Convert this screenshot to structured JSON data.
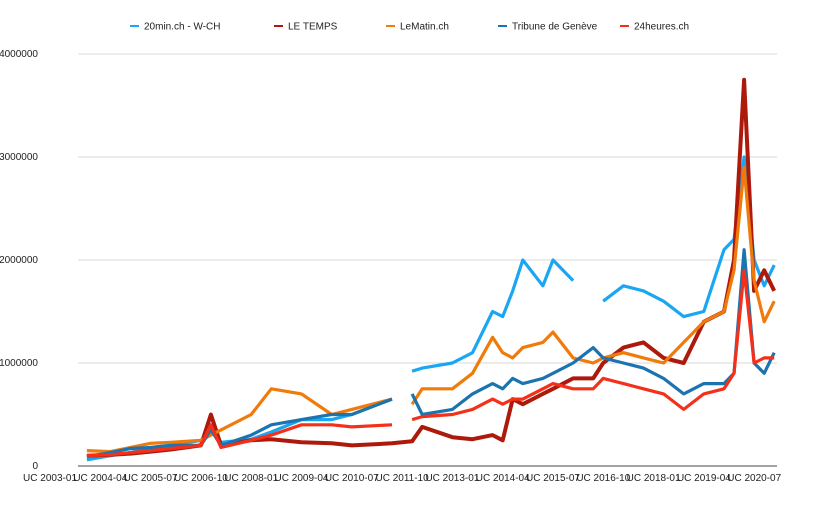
{
  "chart_data": {
    "type": "line",
    "title": "",
    "xlabel": "",
    "ylabel": "",
    "ylim": [
      0,
      4000000
    ],
    "yticks": [
      "0",
      "1000000",
      "2000000",
      "3000000",
      "4000000"
    ],
    "grid": true,
    "legend": "top",
    "xtick_labels": [
      "UC 2003-01",
      "UC 2004-04",
      "UC 2005-07",
      "UC 2006-10",
      "UC 2008-01",
      "UC 2009-04",
      "UC 2010-07",
      "UC 2011-10",
      "UC 2013-01",
      "UC 2014-04",
      "UC 2015-07",
      "UC 2016-10",
      "UC 2018-01",
      "UC 2019-04",
      "UC 2020-07"
    ],
    "x": [
      "2003-12",
      "2004-07",
      "2005-01",
      "2005-07",
      "2006-01",
      "2006-10",
      "2007-01",
      "2007-04",
      "2008-01",
      "2008-07",
      "2009-04",
      "2010-01",
      "2010-07",
      "2011-07",
      "2011-10",
      "2012-01",
      "2012-04",
      "2013-01",
      "2013-07",
      "2014-01",
      "2014-04",
      "2014-07",
      "2014-10",
      "2015-04",
      "2015-07",
      "2016-01",
      "2016-07",
      "2016-10",
      "2017-04",
      "2017-10",
      "2018-04",
      "2018-10",
      "2019-04",
      "2019-10",
      "2020-01",
      "2020-04",
      "2020-07",
      "2020-10",
      "2021-01"
    ],
    "series": [
      {
        "name": "20min.ch - W-CH",
        "color": "#1aa6f2",
        "values": [
          60000,
          100000,
          130000,
          180000,
          200000,
          250000,
          350000,
          230000,
          260000,
          330000,
          450000,
          450000,
          500000,
          650000,
          null,
          920000,
          950000,
          1000000,
          1100000,
          1500000,
          1450000,
          1700000,
          2000000,
          1750000,
          2000000,
          1800000,
          null,
          1600000,
          1750000,
          1700000,
          1600000,
          1450000,
          1500000,
          2100000,
          2200000,
          3000000,
          2000000,
          1750000,
          1950000
        ]
      },
      {
        "name": "LE TEMPS",
        "color": "#ad1a0c",
        "values": [
          100000,
          110000,
          120000,
          140000,
          160000,
          200000,
          500000,
          200000,
          250000,
          260000,
          230000,
          220000,
          200000,
          220000,
          230000,
          240000,
          380000,
          280000,
          260000,
          300000,
          250000,
          650000,
          600000,
          700000,
          750000,
          850000,
          850000,
          1000000,
          1150000,
          1200000,
          1050000,
          1000000,
          1400000,
          1500000,
          2000000,
          3750000,
          1700000,
          1900000,
          1700000
        ]
      },
      {
        "name": "LeMatin.ch",
        "color": "#f07a0a",
        "values": [
          150000,
          140000,
          180000,
          220000,
          230000,
          250000,
          300000,
          350000,
          500000,
          750000,
          700000,
          500000,
          550000,
          650000,
          null,
          600000,
          750000,
          750000,
          900000,
          1250000,
          1100000,
          1050000,
          1150000,
          1200000,
          1300000,
          1050000,
          1000000,
          1050000,
          1100000,
          1050000,
          1000000,
          1200000,
          1400000,
          1500000,
          1900000,
          2900000,
          1800000,
          1400000,
          1600000
        ]
      },
      {
        "name": "Tribune de Genève",
        "color": "#1b74b0",
        "values": [
          90000,
          130000,
          170000,
          180000,
          200000,
          200000,
          350000,
          200000,
          300000,
          400000,
          450000,
          500000,
          500000,
          650000,
          null,
          700000,
          500000,
          550000,
          700000,
          800000,
          750000,
          850000,
          800000,
          850000,
          900000,
          1000000,
          1150000,
          1050000,
          1000000,
          950000,
          850000,
          700000,
          800000,
          800000,
          900000,
          2100000,
          1000000,
          900000,
          1100000
        ]
      },
      {
        "name": "24heures.ch",
        "color": "#f5301a",
        "values": [
          100000,
          110000,
          130000,
          150000,
          170000,
          200000,
          400000,
          180000,
          250000,
          300000,
          400000,
          400000,
          380000,
          400000,
          null,
          450000,
          480000,
          500000,
          550000,
          650000,
          600000,
          650000,
          650000,
          750000,
          800000,
          750000,
          750000,
          850000,
          800000,
          750000,
          700000,
          550000,
          700000,
          750000,
          900000,
          1900000,
          1000000,
          1050000,
          1050000
        ]
      }
    ]
  }
}
